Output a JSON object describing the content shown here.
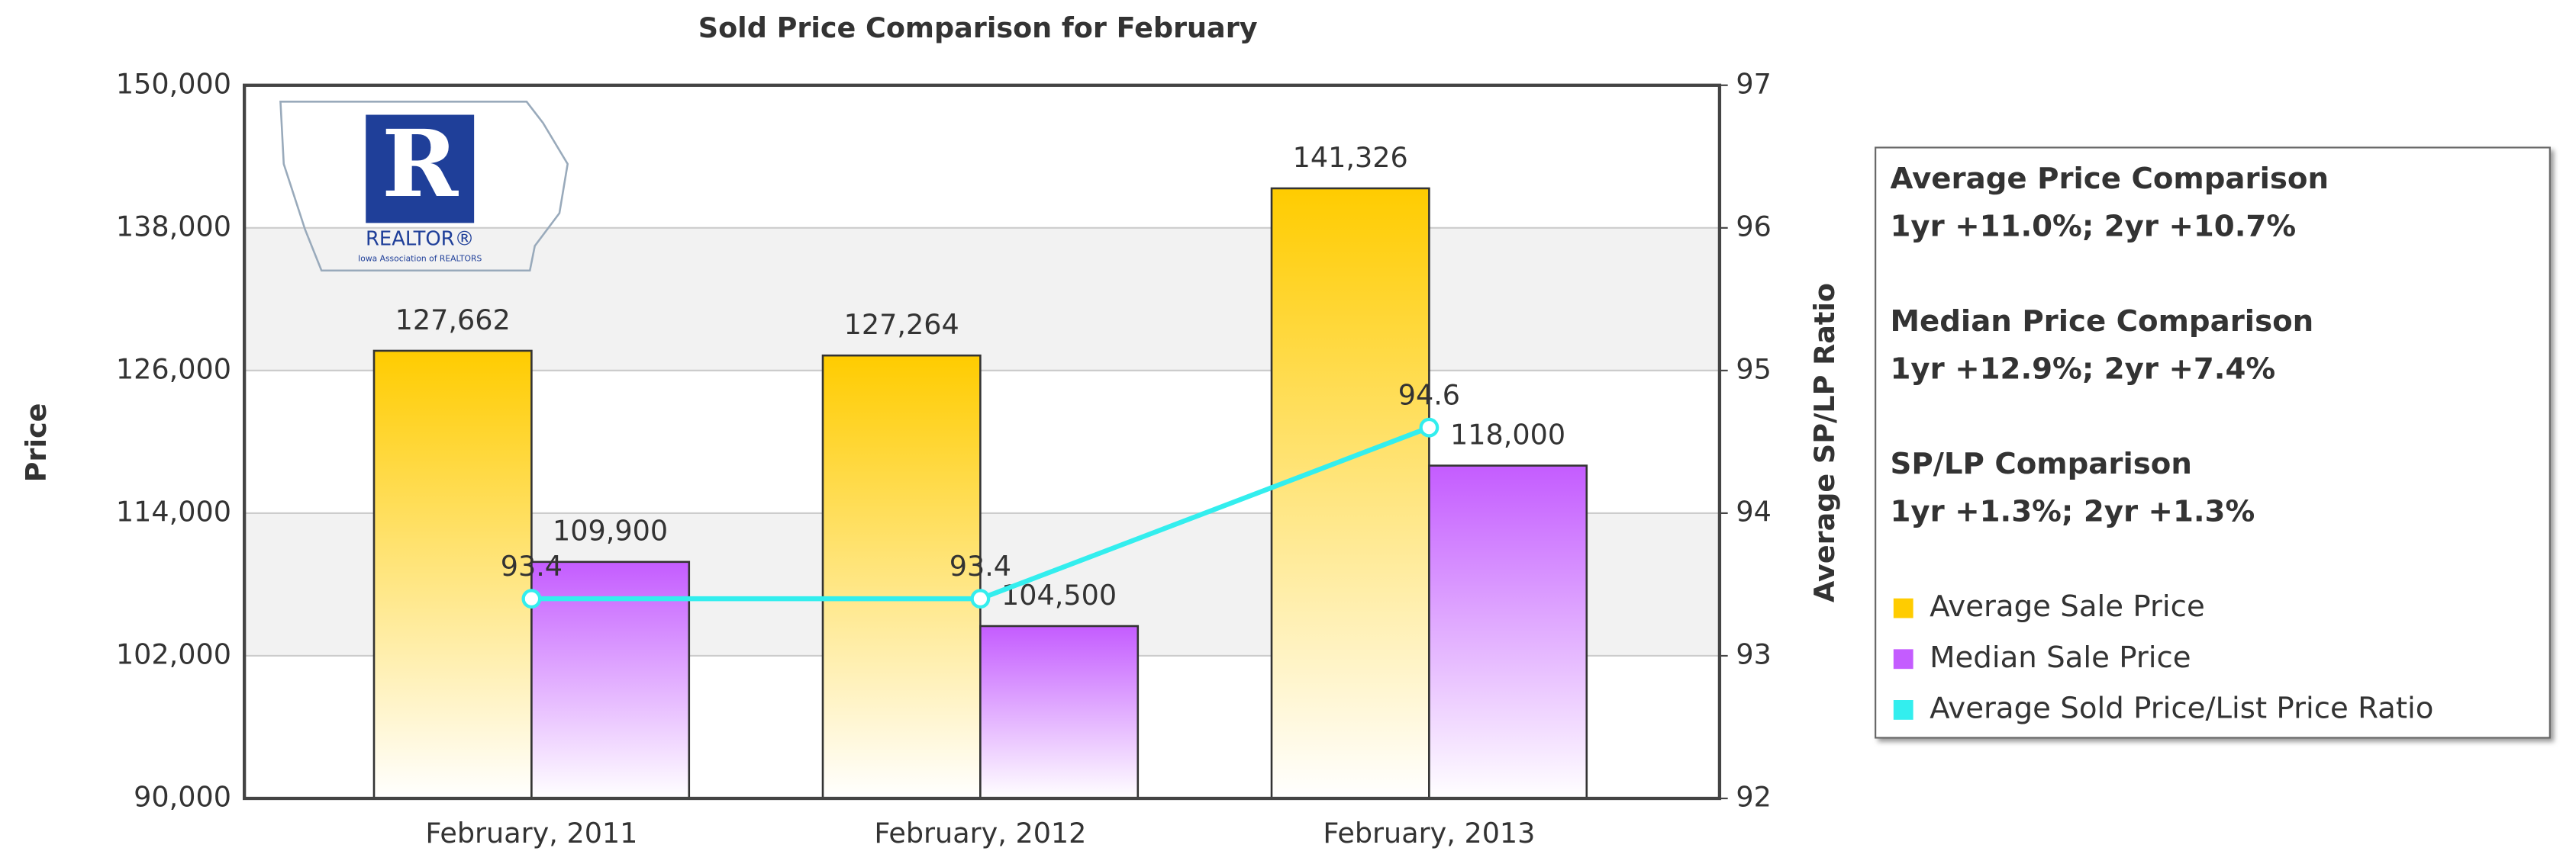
{
  "chart_data": {
    "type": "bar",
    "title": "Sold Price Comparison for February",
    "y_label": "Price",
    "y2_label": "Average SP/LP Ratio",
    "logo_text": "REALTOR®",
    "logo_subtext": "Iowa Association of REALTORS",
    "categories": [
      "February, 2011",
      "February, 2012",
      "February, 2013"
    ],
    "series": [
      {
        "name": "Average Sale Price",
        "color": "#ffcc00",
        "values": [
          127662,
          127264,
          141326
        ],
        "value_labels": [
          "127,662",
          "127,264",
          "141,326"
        ]
      },
      {
        "name": "Median Sale Price",
        "color": "#c45cff",
        "values": [
          109900,
          104500,
          118000
        ],
        "value_labels": [
          "109,900",
          "104,500",
          "118,000"
        ]
      },
      {
        "name": "Average Sold Price/List Price Ratio",
        "color": "#33eeee",
        "type": "line",
        "axis": "y2",
        "values": [
          93.4,
          93.4,
          94.6
        ]
      }
    ],
    "ylim": [
      90000,
      150000
    ],
    "yticks": [
      {
        "value": 90000,
        "label": "90,000"
      },
      {
        "value": 102000,
        "label": "102,000"
      },
      {
        "value": 114000,
        "label": "114,000"
      },
      {
        "value": 126000,
        "label": "126,000"
      },
      {
        "value": 138000,
        "label": "138,000"
      },
      {
        "value": 150000,
        "label": "150,000"
      }
    ],
    "y2lim": [
      92,
      97
    ],
    "y2ticks": [
      92,
      93,
      94,
      95,
      96,
      97
    ],
    "grid": true,
    "legend": "right",
    "annotations": [
      {
        "heading": "Average Price Comparison",
        "text": "1yr +11.0%; 2yr +10.7%"
      },
      {
        "heading": "Median Price Comparison",
        "text": "1yr +12.9%; 2yr +7.4%"
      },
      {
        "heading": "SP/LP Comparison",
        "text": "1yr +1.3%; 2yr +1.3%"
      }
    ]
  }
}
